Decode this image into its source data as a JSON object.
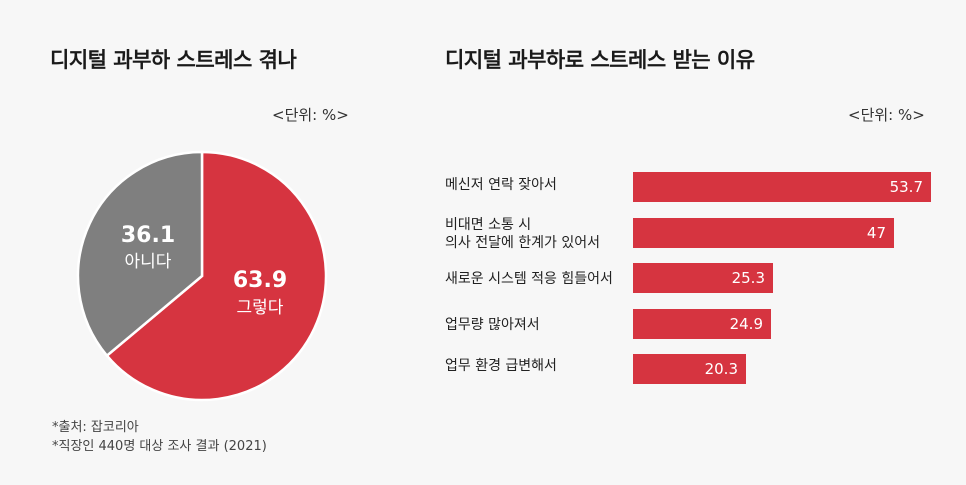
{
  "left_chart": {
    "title": "디지털 과부하 스트레스 겪나",
    "unit": "<단위: %>",
    "source": [
      "*출처: 잡코리아",
      "*직장인 440명 대상 조사 결과 (2021)"
    ]
  },
  "right_chart": {
    "title": "디지털 과부하로 스트레스 받는 이유",
    "unit": "<단위: %>"
  },
  "colors": {
    "red": "#d63440",
    "gray": "#7f7f7f",
    "background": "#f7f7f7"
  },
  "chart_data": [
    {
      "type": "pie",
      "title": "디지털 과부하 스트레스 겪나",
      "slices": [
        {
          "label": "그렇다",
          "value": 63.9,
          "value_text": "63.9",
          "color": "#d63440"
        },
        {
          "label": "아니다",
          "value": 36.1,
          "value_text": "36.1",
          "color": "#7f7f7f"
        }
      ]
    },
    {
      "type": "bar",
      "orientation": "horizontal",
      "title": "디지털 과부하로 스트레스 받는 이유",
      "categories": [
        "메신저 연락 잦아서",
        "비대면 소통 시\n의사 전달에 한계가 있어서",
        "새로운 시스템 적응 힘들어서",
        "업무량 많아져서",
        "업무 환경 급변해서"
      ],
      "values": [
        53.7,
        47,
        25.3,
        24.9,
        20.3
      ],
      "value_labels": [
        "53.7",
        "47",
        "25.3",
        "24.9",
        "20.3"
      ],
      "xlim": [
        0,
        53.7
      ]
    }
  ]
}
